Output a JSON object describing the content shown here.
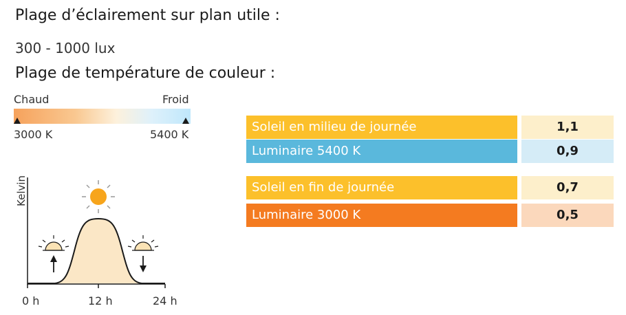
{
  "headings": {
    "illuminance_title": "Plage d’éclairement sur plan utile :",
    "illuminance_value": "300 - 1000 lux",
    "color_temp_title": "Plage de température de couleur :"
  },
  "gradient": {
    "warm_label": "Chaud",
    "cold_label": "Froid",
    "min_label": "3000 K",
    "max_label": "5400 K"
  },
  "graph": {
    "y_label": "Kelvin",
    "ticks": [
      "0 h",
      "12 h",
      "24 h"
    ]
  },
  "table": {
    "rows": [
      {
        "label": "Soleil en milieu de journée",
        "value": "1,1",
        "label_color": "#fcc02b",
        "value_color": "#fdefcb"
      },
      {
        "label": "Luminaire 5400 K",
        "value": "0,9",
        "label_color": "#5ab8dc",
        "value_color": "#d5ecf7"
      },
      {
        "label": "Soleil en fin de journée",
        "value": "0,7",
        "label_color": "#fcc02b",
        "value_color": "#fdefcb"
      },
      {
        "label": "Luminaire 3000 K",
        "value": "0,5",
        "label_color": "#f47b20",
        "value_color": "#fbd8bc"
      }
    ]
  },
  "icons": [
    "sun-icon",
    "sunrise-icon",
    "sunset-icon",
    "arrow-up-icon",
    "arrow-down-icon"
  ]
}
